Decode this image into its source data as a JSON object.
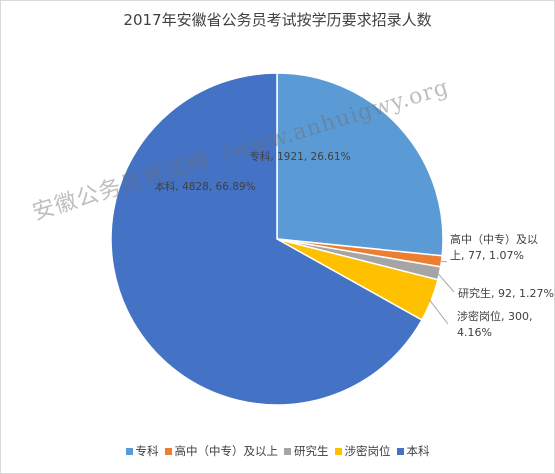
{
  "chart_data": {
    "type": "pie",
    "title": "2017年安徽省公务员考试按学历要求招录人数",
    "slices": [
      {
        "name": "专科",
        "value": 1921,
        "percent": "26.61%",
        "color": "#5b9bd5",
        "label_lines": [
          "专科, 1921, 26.61%"
        ]
      },
      {
        "name": "高中（中专）及以上",
        "value": 77,
        "percent": "1.07%",
        "color": "#ed7d31",
        "label_lines": [
          "高中（中专）及以",
          "上, 77, 1.07%"
        ]
      },
      {
        "name": "研究生",
        "value": 92,
        "percent": "1.27%",
        "color": "#a5a5a5",
        "label_lines": [
          "研究生, 92, 1.27%"
        ]
      },
      {
        "name": "涉密岗位",
        "value": 300,
        "percent": "4.16%",
        "color": "#ffc000",
        "label_lines": [
          "涉密岗位, 300,",
          "4.16%"
        ]
      },
      {
        "name": "本科",
        "value": 4828,
        "percent": "66.89%",
        "color": "#4472c4",
        "label_lines": [
          "本科, 4828, 66.89%"
        ]
      }
    ],
    "legend_position": "bottom"
  },
  "watermark": "安徽公务员考试网（www.anhuigwy.org"
}
